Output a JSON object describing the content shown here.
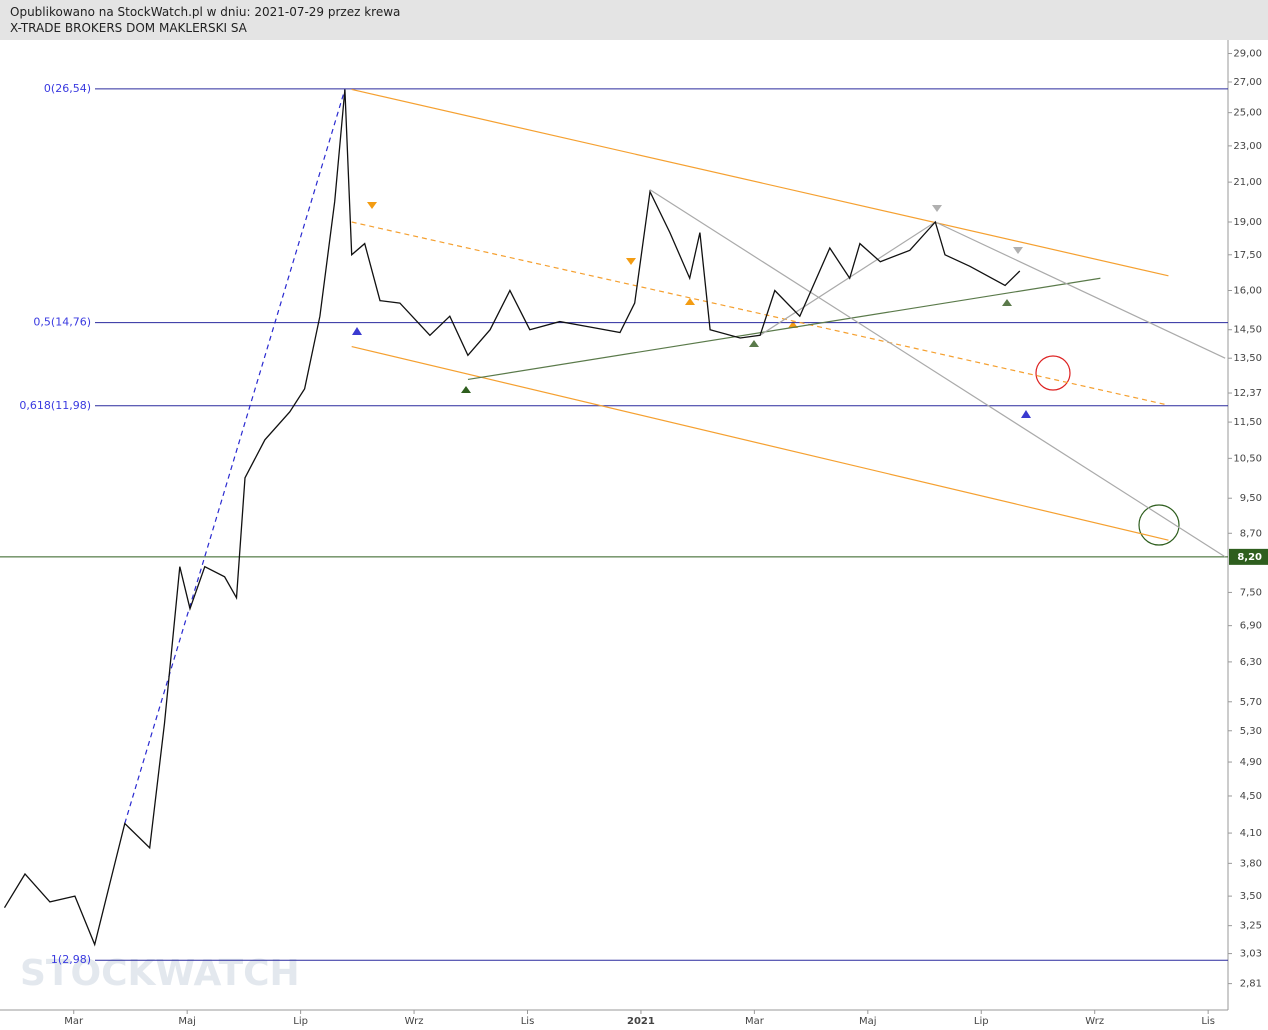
{
  "header": {
    "line1": "Opublikowano na StockWatch.pl w dniu: 2021-07-29 przez krewa",
    "line2": "X-TRADE BROKERS DOM MAKLERSKI SA"
  },
  "watermark": "STOCKWATCH",
  "chart_data": {
    "type": "line",
    "color": "#111111",
    "log_scale": true,
    "x": [
      -1.22,
      -0.86,
      -0.42,
      0.02,
      0.37,
      0.63,
      0.9,
      1.34,
      1.6,
      1.87,
      2.05,
      2.31,
      2.66,
      2.87,
      3.02,
      3.37,
      3.81,
      4.07,
      4.34,
      4.6,
      4.78,
      4.9,
      5.13,
      5.4,
      5.75,
      6.28,
      6.63,
      6.95,
      7.34,
      7.69,
      8.04,
      8.57,
      9.1,
      9.63,
      9.89,
      10.16,
      10.51,
      10.86,
      11.04,
      11.22,
      11.75,
      12.1,
      12.36,
      12.8,
      13.33,
      13.68,
      13.86,
      14.22,
      14.74,
      15.19,
      15.36,
      15.8,
      16.42,
      16.68
    ],
    "values": [
      3.4,
      3.7,
      3.45,
      3.5,
      3.1,
      3.6,
      4.2,
      3.95,
      5.4,
      8.0,
      7.2,
      8.0,
      7.8,
      7.4,
      10.0,
      11.0,
      11.8,
      12.5,
      15.0,
      20.0,
      26.5,
      17.5,
      18.0,
      15.6,
      15.5,
      14.3,
      15.0,
      13.6,
      14.5,
      16.0,
      14.5,
      14.8,
      14.6,
      14.4,
      15.5,
      20.5,
      18.5,
      16.5,
      18.5,
      14.5,
      14.2,
      14.3,
      16.0,
      15.0,
      17.8,
      16.5,
      18.0,
      17.2,
      17.7,
      19.0,
      17.5,
      17.0,
      16.2,
      16.8
    ],
    "xlim": [
      -1.3,
      20.35
    ],
    "ylim": [
      2.63,
      30.0
    ],
    "xticks": [
      {
        "value": 0,
        "label": "Mar"
      },
      {
        "value": 2,
        "label": "Maj"
      },
      {
        "value": 4,
        "label": "Lip"
      },
      {
        "value": 6,
        "label": "Wrz"
      },
      {
        "value": 8,
        "label": "Lis"
      },
      {
        "value": 10,
        "label": "2021"
      },
      {
        "value": 12,
        "label": "Mar"
      },
      {
        "value": 14,
        "label": "Maj"
      },
      {
        "value": 16,
        "label": "Lip"
      },
      {
        "value": 18,
        "label": "Wrz"
      },
      {
        "value": 20,
        "label": "Lis"
      }
    ],
    "yticks": [
      {
        "value": 29,
        "label": "29,00"
      },
      {
        "value": 27,
        "label": "27,00"
      },
      {
        "value": 25,
        "label": "25,00"
      },
      {
        "value": 23,
        "label": "23,00"
      },
      {
        "value": 21,
        "label": "21,00"
      },
      {
        "value": 19,
        "label": "19,00"
      },
      {
        "value": 17.5,
        "label": "17,50"
      },
      {
        "value": 16,
        "label": "16,00"
      },
      {
        "value": 14.5,
        "label": "14,50"
      },
      {
        "value": 13.5,
        "label": "13,50"
      },
      {
        "value": 12.37,
        "label": "12,37"
      },
      {
        "value": 11.5,
        "label": "11,50"
      },
      {
        "value": 10.5,
        "label": "10,50"
      },
      {
        "value": 9.5,
        "label": "9,50"
      },
      {
        "value": 8.7,
        "label": "8,70"
      },
      {
        "value": 7.5,
        "label": "7,50"
      },
      {
        "value": 6.9,
        "label": "6,90"
      },
      {
        "value": 6.3,
        "label": "6,30"
      },
      {
        "value": 5.7,
        "label": "5,70"
      },
      {
        "value": 5.3,
        "label": "5,30"
      },
      {
        "value": 4.9,
        "label": "4,90"
      },
      {
        "value": 4.5,
        "label": "4,50"
      },
      {
        "value": 4.1,
        "label": "4,10"
      },
      {
        "value": 3.8,
        "label": "3,80"
      },
      {
        "value": 3.5,
        "label": "3,50"
      },
      {
        "value": 3.25,
        "label": "3,25"
      },
      {
        "value": 3.03,
        "label": "3,03"
      },
      {
        "value": 2.81,
        "label": "2,81"
      }
    ],
    "support_line": {
      "value": 8.2,
      "label": "8,20",
      "color": "#2e5e1e"
    },
    "fib_levels": [
      {
        "value": 26.54,
        "label": "0(26,54)"
      },
      {
        "value": 14.76,
        "label": "0,5(14,76)"
      },
      {
        "value": 11.98,
        "label": "0,618(11,98)"
      },
      {
        "value": 2.98,
        "label": "1(2,98)"
      }
    ],
    "fib_color": "#2a2a9e",
    "trendlines": [
      {
        "x": [
          4.9,
          19.3
        ],
        "y": [
          26.5,
          16.6
        ],
        "color": "#f5a030",
        "dashed": false
      },
      {
        "x": [
          4.9,
          19.3
        ],
        "y": [
          13.9,
          8.55
        ],
        "color": "#f5a030",
        "dashed": false
      },
      {
        "x": [
          4.9,
          19.3
        ],
        "y": [
          19.0,
          12.0
        ],
        "color": "#f5a030",
        "dashed": true
      },
      {
        "x": [
          6.95,
          18.1
        ],
        "y": [
          12.8,
          16.5
        ],
        "color": "#5a7a4a",
        "dashed": false
      },
      {
        "x": [
          10.16,
          20.3
        ],
        "y": [
          20.6,
          8.2
        ],
        "color": "#aaaaaa",
        "dashed": false
      },
      {
        "x": [
          15.19,
          20.3
        ],
        "y": [
          19.0,
          13.5
        ],
        "color": "#aaaaaa",
        "dashed": false
      },
      {
        "x": [
          12.1,
          15.19
        ],
        "y": [
          14.3,
          19.0
        ],
        "color": "#aaaaaa",
        "dashed": false
      },
      {
        "x": [
          0.9,
          4.78
        ],
        "y": [
          4.2,
          26.5
        ],
        "color": "#2a2ad0",
        "dashed": true
      }
    ]
  }
}
